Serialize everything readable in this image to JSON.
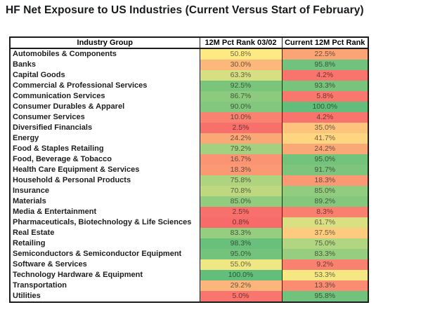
{
  "title": "HF Net Exposure to US Industries (Current Versus Start of February)",
  "chart_data": {
    "type": "table",
    "title": "HF Net Exposure to US Industries (Current Versus Start of February)",
    "columns": [
      "Industry Group",
      "12M Pct Rank 03/02",
      "Current 12M Pct Rank"
    ],
    "unit": "%",
    "heatmap": {
      "min": 0,
      "mid": 50,
      "max": 100,
      "min_color": "#F8696B",
      "mid_color": "#FFEB84",
      "max_color": "#63BE7B",
      "text_darken_factor": 0.45
    },
    "rows": [
      {
        "industry": "Automobiles & Components",
        "rank_0302": 50.8,
        "rank_current": 22.5
      },
      {
        "industry": "Banks",
        "rank_0302": 30.0,
        "rank_current": 95.8
      },
      {
        "industry": "Capital Goods",
        "rank_0302": 63.3,
        "rank_current": 4.2
      },
      {
        "industry": "Commercial & Professional Services",
        "rank_0302": 92.5,
        "rank_current": 93.3
      },
      {
        "industry": "Communication Services",
        "rank_0302": 86.7,
        "rank_current": 5.8
      },
      {
        "industry": "Consumer Durables & Apparel",
        "rank_0302": 90.0,
        "rank_current": 100.0
      },
      {
        "industry": "Consumer Services",
        "rank_0302": 10.0,
        "rank_current": 4.2
      },
      {
        "industry": "Diversified Financials",
        "rank_0302": 2.5,
        "rank_current": 35.0
      },
      {
        "industry": "Energy",
        "rank_0302": 24.2,
        "rank_current": 41.7
      },
      {
        "industry": "Food & Staples Retailing",
        "rank_0302": 79.2,
        "rank_current": 24.2
      },
      {
        "industry": "Food, Beverage & Tobacco",
        "rank_0302": 16.7,
        "rank_current": 95.0
      },
      {
        "industry": "Health Care Equipment & Services",
        "rank_0302": 18.3,
        "rank_current": 91.7
      },
      {
        "industry": "Household & Personal Products",
        "rank_0302": 75.8,
        "rank_current": 18.3
      },
      {
        "industry": "Insurance",
        "rank_0302": 70.8,
        "rank_current": 85.0
      },
      {
        "industry": "Materials",
        "rank_0302": 85.0,
        "rank_current": 89.2
      },
      {
        "industry": "Media & Entertainment",
        "rank_0302": 2.5,
        "rank_current": 8.3
      },
      {
        "industry": "Pharmaceuticals, Biotechnology & Life Sciences",
        "rank_0302": 0.8,
        "rank_current": 61.7
      },
      {
        "industry": "Real Estate",
        "rank_0302": 83.3,
        "rank_current": 37.5
      },
      {
        "industry": "Retailing",
        "rank_0302": 98.3,
        "rank_current": 75.0
      },
      {
        "industry": "Semiconductors & Semiconductor Equipment",
        "rank_0302": 95.0,
        "rank_current": 83.3
      },
      {
        "industry": "Software & Services",
        "rank_0302": 55.0,
        "rank_current": 9.2
      },
      {
        "industry": "Technology Hardware & Equipment",
        "rank_0302": 100.0,
        "rank_current": 53.3
      },
      {
        "industry": "Transportation",
        "rank_0302": 29.2,
        "rank_current": 13.3
      },
      {
        "industry": "Utilities",
        "rank_0302": 5.0,
        "rank_current": 95.8
      }
    ]
  }
}
